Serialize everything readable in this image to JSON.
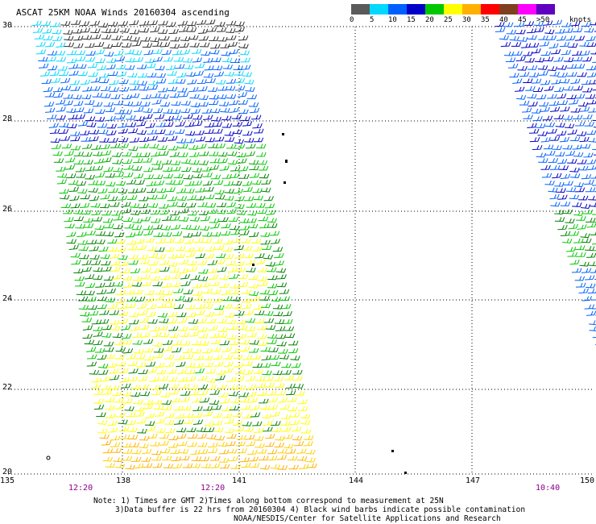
{
  "title": "ASCAT 25KM NOAA Winds 20160304 ascending",
  "colorbar": {
    "labels": [
      "0",
      "5",
      "10",
      "15",
      "20",
      "25",
      "30",
      "35",
      "40",
      "45",
      ">50"
    ],
    "units": "knots",
    "colors": [
      "#5a5a5a",
      "#00d8ff",
      "#0060ff",
      "#0000c8",
      "#00c800",
      "#ffff00",
      "#ffb000",
      "#ff0000",
      "#804020",
      "#ff00ff",
      "#6000c0"
    ]
  },
  "lat_labels": [
    "30",
    "28",
    "26",
    "24",
    "22",
    "20"
  ],
  "lon_labels": [
    "135",
    "138",
    "141",
    "144",
    "147",
    "150"
  ],
  "time_labels": [
    "12:20",
    "12:20",
    "10:40"
  ],
  "notes": [
    "Note: 1) Times are GMT 2)Times along bottom correspond to measurement at 25N",
    "3)Data buffer is 22 hrs from 20160304 4) Black wind barbs indicate possible contamination",
    "NOAA/NESDIS/Center for Satellite Applications and Research"
  ]
}
